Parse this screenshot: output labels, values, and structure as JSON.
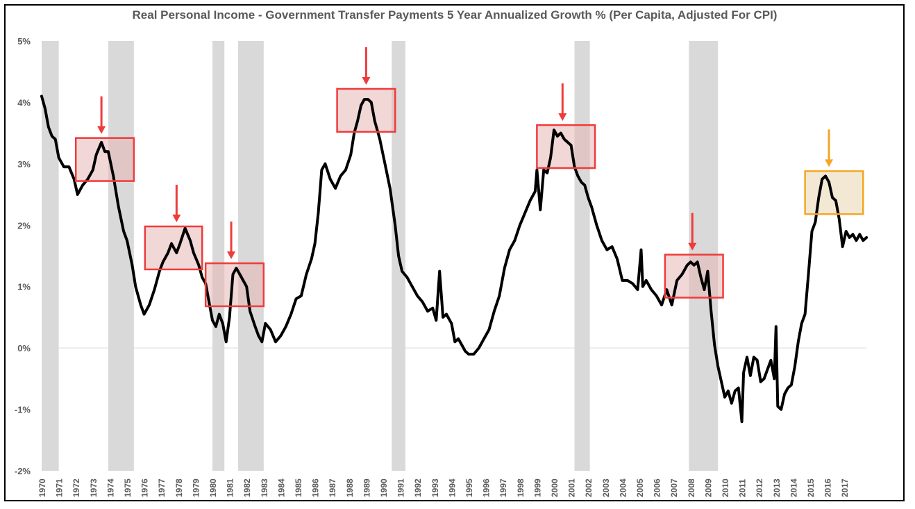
{
  "chart_data": {
    "type": "line",
    "title": "Real Personal Income - Government Transfer Payments 5 Year Annualized Growth % (Per Capita, Adjusted For CPI)",
    "xlabel": "",
    "ylabel": "",
    "xlim": [
      1970.0,
      2018.4
    ],
    "ylim": [
      -2,
      5
    ],
    "y_ticks": [
      {
        "value": 5,
        "label": "5%"
      },
      {
        "value": 4,
        "label": "4%"
      },
      {
        "value": 3,
        "label": "3%"
      },
      {
        "value": 2,
        "label": "2%"
      },
      {
        "value": 1,
        "label": "1%"
      },
      {
        "value": 0,
        "label": "0%"
      },
      {
        "value": -1,
        "label": "-1%"
      },
      {
        "value": -2,
        "label": "-2%"
      }
    ],
    "x_ticks": [
      "1970",
      "1971",
      "1972",
      "1973",
      "1974",
      "1975",
      "1976",
      "1977",
      "1978",
      "1979",
      "1980",
      "1981",
      "1982",
      "1983",
      "1984",
      "1985",
      "1986",
      "1987",
      "1988",
      "1989",
      "1990",
      "1991",
      "1992",
      "1993",
      "1994",
      "1995",
      "1996",
      "1997",
      "1998",
      "1999",
      "2000",
      "2001",
      "2002",
      "2003",
      "2004",
      "2005",
      "2006",
      "2007",
      "2008",
      "2009",
      "2010",
      "2011",
      "2012",
      "2013",
      "2014",
      "2015",
      "2016",
      "2017"
    ],
    "recessions": [
      [
        1970.0,
        1971.0
      ],
      [
        1973.9,
        1975.4
      ],
      [
        1980.0,
        1980.7
      ],
      [
        1981.5,
        1983.0
      ],
      [
        1990.5,
        1991.3
      ],
      [
        2001.2,
        2002.1
      ],
      [
        2007.9,
        2009.6
      ]
    ],
    "highlights": [
      {
        "x0": 1972.0,
        "x1": 1975.4,
        "y0": 2.72,
        "y1": 3.42,
        "kind": "peak",
        "arrow_x": 1973.5
      },
      {
        "x0": 1976.05,
        "x1": 1979.4,
        "y0": 1.28,
        "y1": 1.98,
        "kind": "peak",
        "arrow_x": 1977.9
      },
      {
        "x0": 1979.6,
        "x1": 1983.0,
        "y0": 0.68,
        "y1": 1.38,
        "kind": "peak",
        "arrow_x": 1981.1
      },
      {
        "x0": 1987.3,
        "x1": 1990.7,
        "y0": 3.52,
        "y1": 4.22,
        "kind": "peak",
        "arrow_x": 1989.0
      },
      {
        "x0": 1999.0,
        "x1": 2002.4,
        "y0": 2.93,
        "y1": 3.63,
        "kind": "peak",
        "arrow_x": 2000.5
      },
      {
        "x0": 2006.5,
        "x1": 2009.9,
        "y0": 0.82,
        "y1": 1.52,
        "kind": "peak",
        "arrow_x": 2008.1
      },
      {
        "x0": 2014.7,
        "x1": 2018.1,
        "y0": 2.18,
        "y1": 2.88,
        "kind": "current",
        "arrow_x": 2016.1
      }
    ],
    "series": [
      {
        "name": "Real Personal Income - Government Transfer Payments 5 Year Annualized Growth %",
        "x": [
          1970.0,
          1970.2,
          1970.4,
          1970.6,
          1970.8,
          1971.0,
          1971.3,
          1971.6,
          1971.9,
          1972.1,
          1972.4,
          1972.7,
          1973.0,
          1973.2,
          1973.5,
          1973.7,
          1973.9,
          1974.2,
          1974.5,
          1974.8,
          1975.0,
          1975.3,
          1975.5,
          1975.8,
          1976.0,
          1976.3,
          1976.6,
          1976.9,
          1977.1,
          1977.4,
          1977.6,
          1977.9,
          1978.1,
          1978.4,
          1978.7,
          1978.9,
          1979.2,
          1979.4,
          1979.6,
          1979.8,
          1980.0,
          1980.2,
          1980.4,
          1980.6,
          1980.8,
          1981.0,
          1981.2,
          1981.4,
          1981.6,
          1981.8,
          1982.0,
          1982.2,
          1982.5,
          1982.7,
          1982.9,
          1983.1,
          1983.4,
          1983.7,
          1984.0,
          1984.3,
          1984.6,
          1984.9,
          1985.2,
          1985.5,
          1985.8,
          1986.0,
          1986.2,
          1986.4,
          1986.6,
          1986.9,
          1987.2,
          1987.5,
          1987.8,
          1988.1,
          1988.3,
          1988.5,
          1988.7,
          1988.9,
          1989.1,
          1989.3,
          1989.5,
          1989.8,
          1990.1,
          1990.4,
          1990.7,
          1990.9,
          1991.1,
          1991.4,
          1991.7,
          1992.0,
          1992.3,
          1992.6,
          1992.9,
          1993.1,
          1993.3,
          1993.5,
          1993.7,
          1994.0,
          1994.2,
          1994.4,
          1994.6,
          1994.8,
          1995.0,
          1995.3,
          1995.6,
          1995.9,
          1996.2,
          1996.5,
          1996.8,
          1997.1,
          1997.4,
          1997.7,
          1998.0,
          1998.3,
          1998.6,
          1998.9,
          1999.0,
          1999.2,
          1999.4,
          1999.6,
          1999.8,
          2000.0,
          2000.2,
          2000.4,
          2000.6,
          2000.8,
          2001.0,
          2001.2,
          2001.4,
          2001.6,
          2001.8,
          2002.0,
          2002.2,
          2002.5,
          2002.8,
          2003.1,
          2003.4,
          2003.7,
          2004.0,
          2004.3,
          2004.6,
          2004.9,
          2005.1,
          2005.2,
          2005.4,
          2005.7,
          2006.0,
          2006.3,
          2006.6,
          2006.9,
          2007.2,
          2007.5,
          2007.8,
          2008.0,
          2008.2,
          2008.4,
          2008.6,
          2008.8,
          2009.0,
          2009.2,
          2009.4,
          2009.6,
          2009.8,
          2010.0,
          2010.2,
          2010.4,
          2010.6,
          2010.8,
          2011.0,
          2011.1,
          2011.3,
          2011.5,
          2011.7,
          2011.9,
          2012.1,
          2012.3,
          2012.5,
          2012.7,
          2012.9,
          2013.0,
          2013.1,
          2013.3,
          2013.5,
          2013.7,
          2013.9,
          2014.1,
          2014.3,
          2014.5,
          2014.7,
          2014.9,
          2015.1,
          2015.3,
          2015.5,
          2015.7,
          2015.9,
          2016.1,
          2016.3,
          2016.5,
          2016.7,
          2016.9,
          2017.1,
          2017.3,
          2017.5,
          2017.7,
          2017.9,
          2018.1,
          2018.3
        ],
        "y": [
          4.1,
          3.9,
          3.6,
          3.45,
          3.4,
          3.1,
          2.95,
          2.95,
          2.75,
          2.5,
          2.65,
          2.75,
          2.9,
          3.15,
          3.35,
          3.2,
          3.2,
          2.8,
          2.3,
          1.9,
          1.75,
          1.35,
          1.0,
          0.7,
          0.55,
          0.7,
          0.95,
          1.25,
          1.4,
          1.55,
          1.7,
          1.55,
          1.7,
          1.95,
          1.75,
          1.55,
          1.35,
          1.15,
          1.05,
          0.75,
          0.45,
          0.35,
          0.55,
          0.4,
          0.1,
          0.5,
          1.2,
          1.3,
          1.2,
          1.1,
          1.0,
          0.6,
          0.35,
          0.2,
          0.1,
          0.4,
          0.3,
          0.1,
          0.2,
          0.35,
          0.55,
          0.8,
          0.85,
          1.2,
          1.45,
          1.7,
          2.2,
          2.9,
          3.0,
          2.75,
          2.6,
          2.8,
          2.9,
          3.15,
          3.5,
          3.7,
          3.95,
          4.05,
          4.05,
          4.0,
          3.7,
          3.4,
          3.0,
          2.6,
          2.0,
          1.5,
          1.25,
          1.15,
          1.0,
          0.85,
          0.75,
          0.6,
          0.65,
          0.45,
          1.25,
          0.5,
          0.55,
          0.4,
          0.1,
          0.15,
          0.05,
          -0.05,
          -0.1,
          -0.1,
          0.0,
          0.15,
          0.3,
          0.6,
          0.85,
          1.3,
          1.6,
          1.75,
          2.0,
          2.2,
          2.4,
          2.55,
          2.9,
          2.25,
          2.9,
          2.85,
          3.1,
          3.55,
          3.45,
          3.5,
          3.4,
          3.35,
          3.3,
          2.95,
          2.8,
          2.7,
          2.65,
          2.45,
          2.3,
          2.0,
          1.75,
          1.6,
          1.65,
          1.45,
          1.1,
          1.1,
          1.05,
          0.95,
          1.6,
          1.0,
          1.1,
          0.95,
          0.85,
          0.7,
          0.95,
          0.7,
          1.1,
          1.2,
          1.35,
          1.4,
          1.35,
          1.4,
          1.15,
          0.95,
          1.25,
          0.6,
          0.05,
          -0.3,
          -0.55,
          -0.8,
          -0.7,
          -0.9,
          -0.7,
          -0.65,
          -1.2,
          -0.4,
          -0.15,
          -0.45,
          -0.15,
          -0.2,
          -0.55,
          -0.5,
          -0.35,
          -0.2,
          -0.5,
          0.35,
          -0.95,
          -1.0,
          -0.75,
          -0.65,
          -0.6,
          -0.3,
          0.1,
          0.4,
          0.55,
          1.2,
          1.9,
          2.05,
          2.45,
          2.75,
          2.8,
          2.7,
          2.45,
          2.4,
          2.1,
          1.65,
          1.9,
          1.8,
          1.85,
          1.75,
          1.85,
          1.75,
          1.8
        ]
      }
    ]
  }
}
